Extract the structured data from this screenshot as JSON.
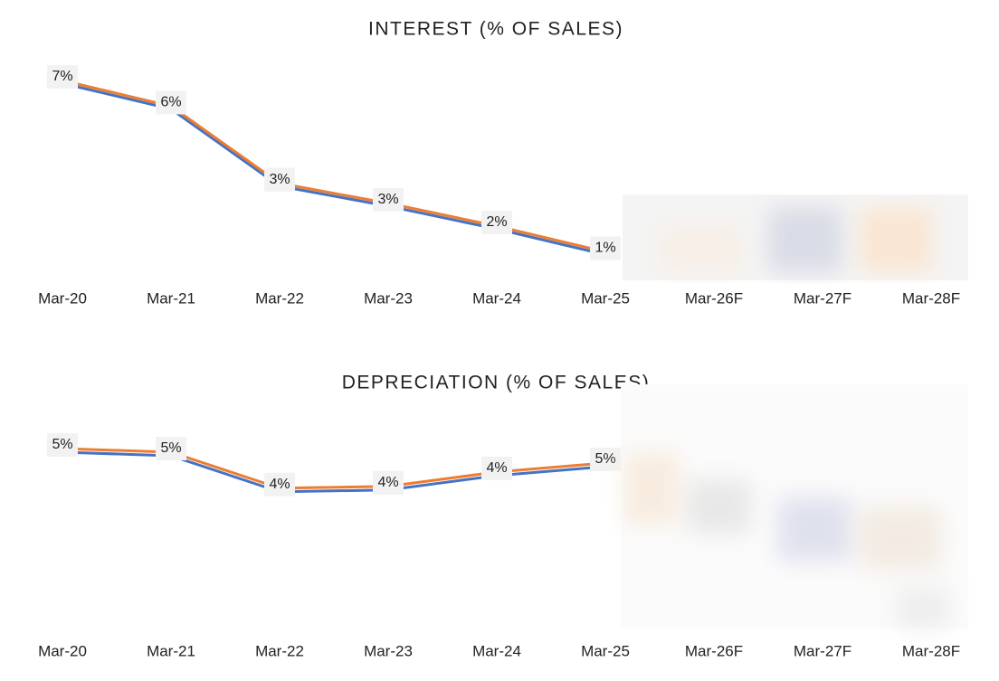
{
  "chart_data": [
    {
      "type": "line",
      "title": "INTEREST (% OF SALES)",
      "categories": [
        "Mar-20",
        "Mar-21",
        "Mar-22",
        "Mar-23",
        "Mar-24",
        "Mar-25",
        "Mar-26F",
        "Mar-27F",
        "Mar-28F"
      ],
      "series": [
        {
          "color": "#4472c4",
          "values": [
            6.9,
            6.0,
            3.3,
            2.6,
            1.8,
            0.9,
            null,
            null,
            null
          ]
        },
        {
          "color": "#ed7d31",
          "values": [
            7.0,
            6.1,
            3.4,
            2.7,
            1.9,
            1.0,
            null,
            null,
            null
          ],
          "value_labels": [
            "7%",
            "6%",
            "3%",
            "3%",
            "2%",
            "1%",
            null,
            null,
            null
          ]
        }
      ]
    },
    {
      "type": "line",
      "title": "DEPRECIATION (% OF SALES)",
      "categories": [
        "Mar-20",
        "Mar-21",
        "Mar-22",
        "Mar-23",
        "Mar-24",
        "Mar-25",
        "Mar-26F",
        "Mar-27F",
        "Mar-28F"
      ],
      "series": [
        {
          "color": "#4472c4",
          "values": [
            4.9,
            4.8,
            3.8,
            3.85,
            4.25,
            4.5,
            null,
            null,
            null
          ]
        },
        {
          "color": "#ed7d31",
          "values": [
            5.0,
            4.9,
            3.9,
            3.95,
            4.35,
            4.6,
            null,
            null,
            null
          ],
          "value_labels": [
            "5%",
            "5%",
            "4%",
            "4%",
            "4%",
            "5%",
            null,
            null,
            null
          ]
        }
      ]
    }
  ]
}
